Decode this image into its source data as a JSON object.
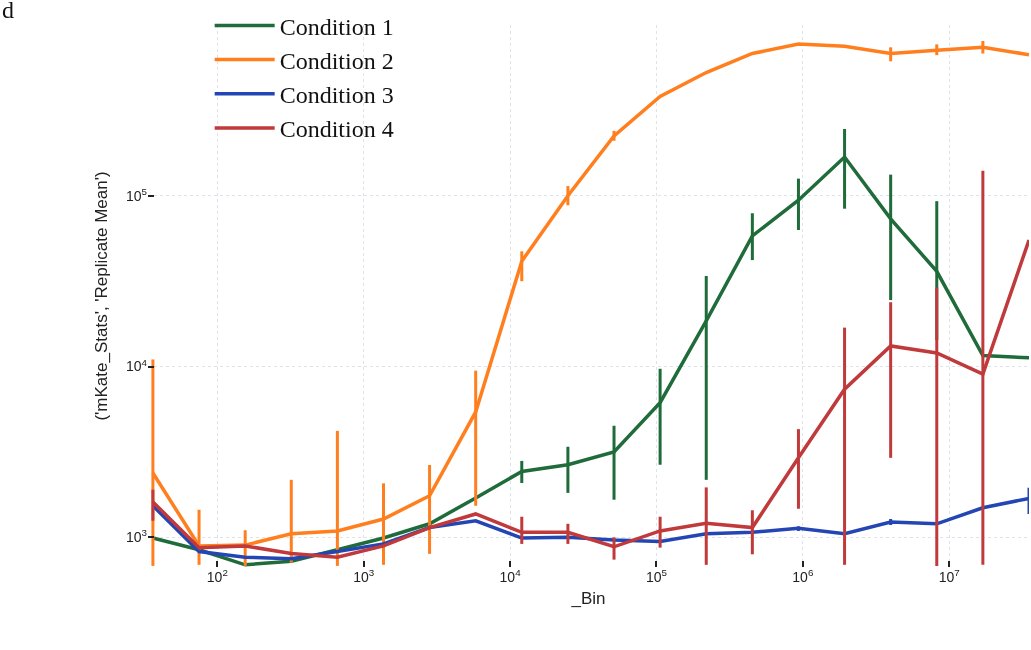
{
  "chart_data": {
    "type": "line",
    "xlabel": "_Bin",
    "ylabel": "('mKate_Stats', 'Replicate Mean')",
    "annotations": [
      "d"
    ],
    "x": [
      36.3,
      75,
      155,
      320,
      661,
      1365,
      2818,
      5821,
      12020,
      24830,
      51290,
      105900,
      218800,
      451900,
      933300,
      1928000,
      3981000,
      8222000,
      16980000,
      35080000
    ],
    "series": [
      {
        "name": "Condition 1",
        "color": "#1f6b3a",
        "values": [
          990,
          845,
          690,
          725,
          845,
          990,
          1200,
          1700,
          2430,
          2660,
          3160,
          6140,
          18500,
          58200,
          94200,
          168600,
          73300,
          36100,
          11600,
          11250
        ],
        "errors": [
          null,
          null,
          null,
          null,
          null,
          null,
          null,
          null,
          [
            2080,
            2800
          ],
          [
            1820,
            3390
          ],
          [
            1660,
            4500
          ],
          [
            2660,
            9700
          ],
          [
            2170,
            33900
          ],
          [
            42000,
            79000
          ],
          [
            63000,
            126000
          ],
          [
            84000,
            246000
          ],
          [
            24500,
            133000
          ],
          [
            14300,
            93000
          ],
          null,
          null
        ]
      },
      {
        "name": "Condition 2",
        "color": "#ff7f1e",
        "values": [
          2380,
          890,
          900,
          1050,
          1090,
          1280,
          1750,
          5420,
          41400,
          100000,
          224000,
          382000,
          527000,
          681000,
          774000,
          750000,
          681000,
          711000,
          740000,
          670000
        ],
        "errors": [
          [
            680,
            11000
          ],
          [
            690,
            1450
          ],
          [
            680,
            1100
          ],
          [
            710,
            2170
          ],
          [
            680,
            4200
          ],
          [
            690,
            2070
          ],
          [
            800,
            2650
          ],
          [
            1530,
            9460
          ],
          [
            31600,
            47300
          ],
          [
            88000,
            114000
          ],
          [
            210000,
            240000
          ],
          null,
          null,
          null,
          null,
          null,
          [
            613000,
            740000
          ],
          [
            666000,
            770000
          ],
          [
            681000,
            806000
          ],
          null
        ]
      },
      {
        "name": "Condition 3",
        "color": "#2346b4",
        "values": [
          1530,
          825,
          765,
          750,
          825,
          915,
          1140,
          1250,
          990,
          1000,
          965,
          945,
          1050,
          1070,
          1130,
          1050,
          1230,
          1200,
          1490,
          1690
        ],
        "errors": [
          null,
          null,
          null,
          null,
          null,
          null,
          null,
          null,
          null,
          null,
          null,
          null,
          null,
          null,
          [
            1090,
            1160
          ],
          null,
          [
            1180,
            1280
          ],
          null,
          null,
          [
            1370,
            1950
          ]
        ]
      },
      {
        "name": "Condition 4",
        "color": "#c0393b",
        "values": [
          1610,
          870,
          890,
          805,
          765,
          890,
          1140,
          1370,
          1070,
          1070,
          880,
          1090,
          1210,
          1140,
          2920,
          7370,
          13200,
          12000,
          9020,
          55000
        ],
        "errors": [
          [
            1250,
            1900
          ],
          null,
          null,
          null,
          null,
          null,
          null,
          null,
          [
            915,
            1320
          ],
          [
            915,
            1200
          ],
          [
            740,
            1000
          ],
          [
            870,
            1320
          ],
          [
            690,
            1960
          ],
          [
            795,
            1440
          ],
          [
            1470,
            4300
          ],
          [
            690,
            16900
          ],
          [
            2920,
            23800
          ],
          [
            680,
            29000
          ],
          [
            690,
            140000
          ],
          null
        ]
      }
    ],
    "log": "xy",
    "xlim": [
      33.6,
      35080000
    ],
    "xticks": [
      {
        "value": 100,
        "label": "10$^{2}$"
      },
      {
        "value": 1000,
        "label": "10$^{3}$"
      },
      {
        "value": 10000,
        "label": "10$^{4}$"
      },
      {
        "value": 100000,
        "label": "10$^{5}$"
      },
      {
        "value": 1000000,
        "label": "10$^{6}$"
      },
      {
        "value": 10000000,
        "label": "10$^{7}$"
      }
    ],
    "ylim": [
      670,
      1000000
    ],
    "yticks": [
      {
        "value": 1000,
        "label": "10$^{3}$"
      },
      {
        "value": 10000,
        "label": "10$^{4}$"
      },
      {
        "value": 100000,
        "label": "10$^{5}$"
      }
    ],
    "grid": true,
    "legend": "top left",
    "marker": "none",
    "line_style": "solid"
  }
}
